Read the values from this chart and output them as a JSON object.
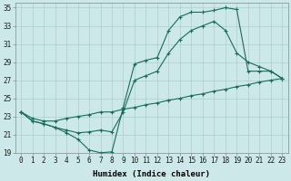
{
  "xlabel": "Humidex (Indice chaleur)",
  "xlim": [
    -0.5,
    23.5
  ],
  "ylim": [
    19,
    35.5
  ],
  "xticks": [
    0,
    1,
    2,
    3,
    4,
    5,
    6,
    7,
    8,
    9,
    10,
    11,
    12,
    13,
    14,
    15,
    16,
    17,
    18,
    19,
    20,
    21,
    22,
    23
  ],
  "yticks": [
    19,
    21,
    23,
    25,
    27,
    29,
    31,
    33,
    35
  ],
  "bg_color": "#cce8e8",
  "grid_color": "#aacfcf",
  "line_color": "#1a6b5a",
  "line1_x": [
    0,
    1,
    2,
    3,
    4,
    5,
    6,
    7,
    8,
    9,
    10,
    11,
    12,
    13,
    14,
    15,
    16,
    17,
    18,
    19,
    20,
    21,
    22,
    23
  ],
  "line1_y": [
    23.5,
    22.5,
    22.2,
    21.8,
    21.2,
    20.5,
    19.3,
    19.0,
    19.1,
    24.0,
    28.8,
    29.2,
    29.5,
    32.5,
    34.0,
    34.5,
    34.5,
    34.7,
    35.0,
    34.8,
    28.0,
    28.0,
    28.0,
    27.2
  ],
  "line2_x": [
    0,
    1,
    2,
    3,
    4,
    5,
    6,
    7,
    8,
    9,
    10,
    11,
    12,
    13,
    14,
    15,
    16,
    17,
    18,
    19,
    20,
    21,
    22,
    23
  ],
  "line2_y": [
    23.5,
    22.5,
    22.2,
    21.8,
    21.5,
    21.2,
    21.3,
    21.5,
    21.3,
    23.5,
    27.0,
    27.5,
    28.0,
    30.0,
    31.5,
    32.5,
    33.0,
    33.5,
    32.5,
    30.0,
    29.0,
    28.5,
    28.0,
    27.2
  ],
  "line3_x": [
    0,
    1,
    2,
    3,
    4,
    5,
    6,
    7,
    8,
    9,
    10,
    11,
    12,
    13,
    14,
    15,
    16,
    17,
    18,
    19,
    20,
    21,
    22,
    23
  ],
  "line3_y": [
    23.5,
    22.8,
    22.5,
    22.5,
    22.8,
    23.0,
    23.2,
    23.5,
    23.5,
    23.8,
    24.0,
    24.3,
    24.5,
    24.8,
    25.0,
    25.3,
    25.5,
    25.8,
    26.0,
    26.3,
    26.5,
    26.8,
    27.0,
    27.2
  ],
  "xlabel_fontsize": 6.5,
  "tick_fontsize": 5.5,
  "marker_size": 3
}
